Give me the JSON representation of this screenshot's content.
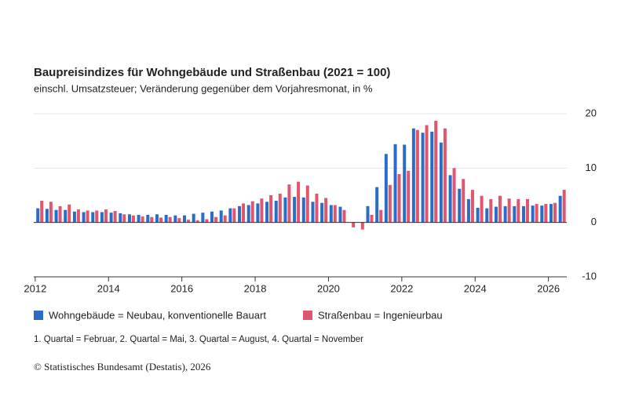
{
  "chart_data": {
    "type": "bar",
    "title": "Baupreisindizes für Wohngebäude und Straßenbau (2021 = 100)",
    "subtitle": "einschl. Umsatzsteuer; Veränderung gegenüber dem Vorjahresmonat, in %",
    "note": "1. Quartal = Februar, 2. Quartal = Mai, 3. Quartal = August, 4. Quartal = November",
    "source": "© Statistisches Bundesamt (Destatis), 2026",
    "x": [
      2012.125,
      2012.375,
      2012.625,
      2012.875,
      2013.125,
      2013.375,
      2013.625,
      2013.875,
      2014.125,
      2014.375,
      2014.625,
      2014.875,
      2015.125,
      2015.375,
      2015.625,
      2015.875,
      2016.125,
      2016.375,
      2016.625,
      2016.875,
      2017.125,
      2017.375,
      2017.625,
      2017.875,
      2018.125,
      2018.375,
      2018.625,
      2018.875,
      2019.125,
      2019.375,
      2019.625,
      2019.875,
      2020.125,
      2020.375,
      2020.625,
      2020.875,
      2021.125,
      2021.375,
      2021.625,
      2021.875,
      2022.125,
      2022.375,
      2022.625,
      2022.875,
      2023.125,
      2023.375,
      2023.625,
      2023.875,
      2024.125,
      2024.375,
      2024.625,
      2024.875,
      2025.125,
      2025.375,
      2025.625,
      2025.875,
      2026.125,
      2026.375
    ],
    "series": [
      {
        "name": "Wohngebäude = Neubau, konventionelle Bauart",
        "color": "#2b6cc4",
        "values": [
          2.6,
          2.5,
          2.3,
          2.3,
          2.0,
          1.9,
          1.9,
          1.9,
          1.8,
          1.7,
          1.5,
          1.4,
          1.4,
          1.5,
          1.4,
          1.3,
          1.3,
          1.6,
          1.8,
          2.0,
          2.2,
          2.6,
          3.0,
          3.2,
          3.5,
          3.8,
          4.0,
          4.6,
          4.7,
          4.6,
          3.8,
          3.6,
          3.2,
          2.9,
          0.0,
          0.0,
          3.0,
          6.5,
          12.6,
          14.4,
          14.3,
          17.3,
          16.5,
          16.7,
          14.7,
          8.7,
          6.2,
          4.3,
          2.7,
          2.6,
          2.9,
          3.0,
          3.0,
          3.0,
          3.1,
          3.1,
          3.4,
          4.9
        ]
      },
      {
        "name": "Straßenbau = Ingenieurbau",
        "color": "#e0566e",
        "values": [
          4.0,
          3.8,
          3.0,
          3.3,
          2.4,
          2.2,
          2.2,
          2.4,
          2.1,
          1.5,
          1.3,
          1.1,
          1.0,
          0.9,
          1.0,
          0.8,
          0.5,
          0.4,
          0.6,
          1.0,
          1.3,
          2.6,
          3.5,
          3.9,
          4.4,
          5.0,
          5.3,
          7.0,
          7.5,
          6.8,
          5.3,
          4.5,
          3.2,
          2.3,
          -0.9,
          -1.3,
          1.4,
          2.3,
          6.9,
          8.9,
          9.5,
          17.0,
          17.9,
          18.7,
          17.3,
          10.0,
          8.0,
          6.0,
          4.9,
          4.3,
          4.9,
          4.4,
          4.3,
          4.3,
          3.4,
          3.4,
          3.6,
          6.0
        ]
      }
    ],
    "xlim": [
      2011.96,
      2026.5
    ],
    "xticks": [
      2012,
      2014,
      2016,
      2018,
      2020,
      2022,
      2024,
      2026
    ],
    "ylim": [
      -10,
      20
    ],
    "yticks": [
      -10,
      0,
      10,
      20
    ],
    "grid": true
  }
}
